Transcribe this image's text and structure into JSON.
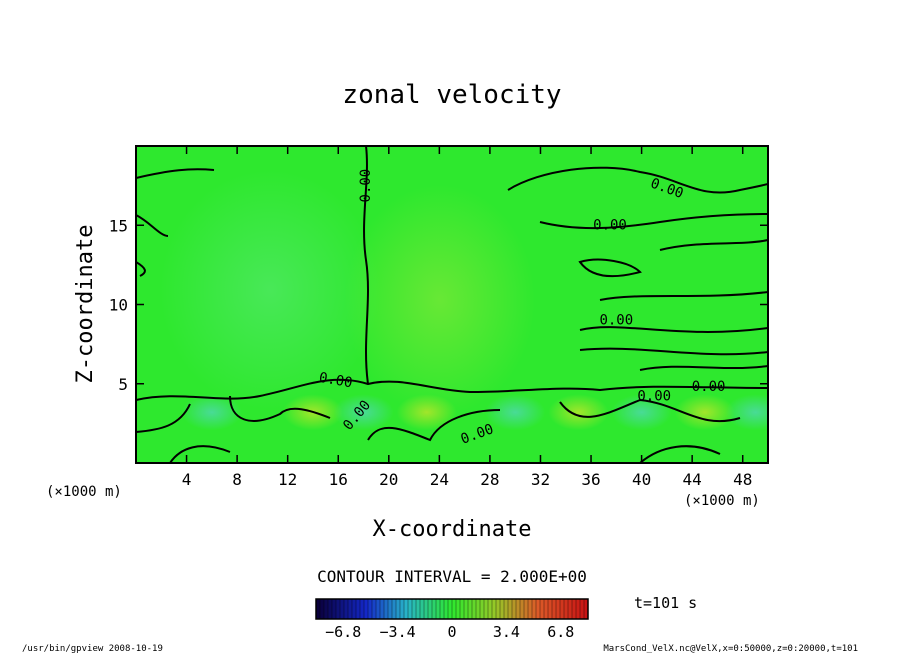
{
  "chart_data": {
    "type": "heatmap",
    "title": "zonal velocity",
    "xlabel": "X-coordinate",
    "ylabel": "Z-coordinate",
    "x_unit_left": "(×1000 m)",
    "x_unit_right": "(×1000 m)",
    "xlim": [
      0,
      50
    ],
    "ylim": [
      0,
      20
    ],
    "xticks": [
      "4",
      "8",
      "12",
      "16",
      "20",
      "24",
      "28",
      "32",
      "36",
      "40",
      "44",
      "48"
    ],
    "yticks": [
      "5",
      "10",
      "15"
    ],
    "contour_label": "0.00",
    "contour_interval_text": "CONTOUR INTERVAL = 2.000E+00",
    "colorbar_ticks": [
      "−6.8",
      "−3.4",
      "0",
      "3.4",
      "6.8"
    ],
    "colorbar_range": [
      -8.5,
      8.5
    ],
    "time_text": "t=101 s",
    "footer_left": "/usr/bin/gpview   2008-10-19",
    "footer_right": "MarsCond_VelX.nc@VelX,x=0:50000,z=0:20000,t=101",
    "colors": {
      "field_background": "#2ee82e",
      "contour_line": "#000000"
    }
  }
}
